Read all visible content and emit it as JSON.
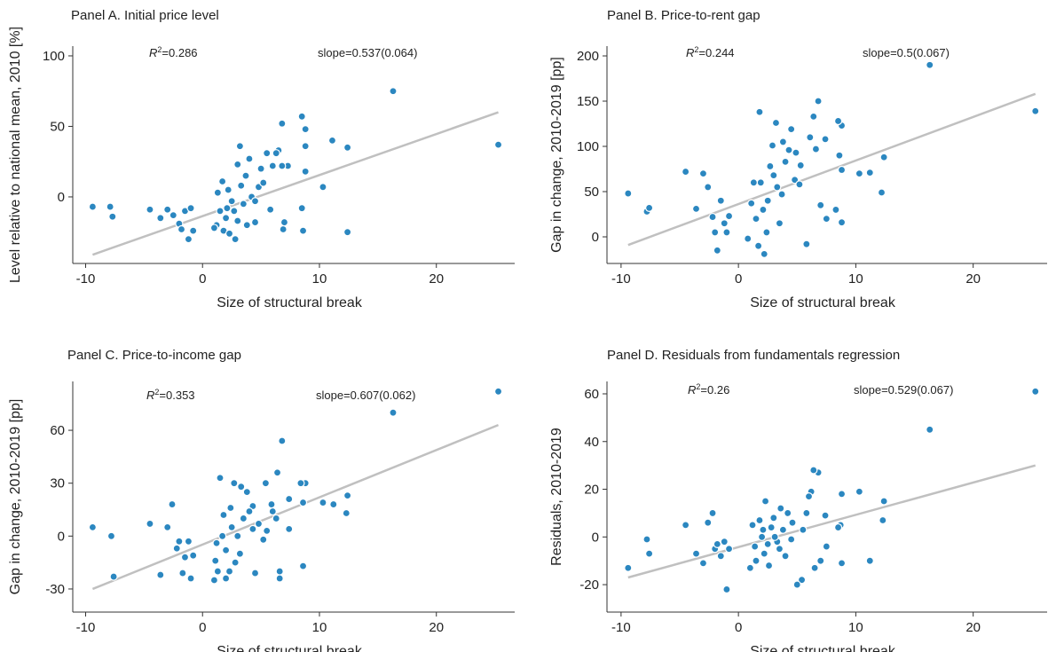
{
  "chart_data": [
    {
      "type": "scatter",
      "title": "Panel A. Initial price level",
      "xlabel": "Size of structural break",
      "ylabel": "Level relative to national mean, 2010 [%]",
      "xlim": [
        -11.1,
        26.7
      ],
      "ylim": [
        -47.2,
        106.9
      ],
      "xticks": [
        -10,
        0,
        10,
        20
      ],
      "yticks": [
        0,
        50,
        100
      ],
      "color": "#2b87c0",
      "fit_color": "#c0c0c0",
      "r2_prefix": "R",
      "r2_sup": "2",
      "r2_text": "=0.286",
      "slope_text": "slope=0.537(0.064)",
      "fit": {
        "x": [
          -9.4,
          25.3
        ],
        "y": [
          -41,
          60
        ]
      },
      "x": [
        -9.4,
        -7.9,
        -7.7,
        -4.5,
        -3.6,
        -3,
        -2.5,
        -2,
        -1.8,
        -1.5,
        -1.2,
        -1,
        -0.8,
        16.3,
        25.3,
        12.4,
        12.4,
        11.1,
        10.3,
        8.8,
        8.5,
        8.8,
        8.8,
        8.6,
        8.5,
        7.3,
        6.8,
        6.5,
        6.3,
        6.9,
        7,
        6,
        5.5,
        5,
        4.8,
        4.5,
        4,
        3.7,
        3.3,
        3.2,
        3,
        2.8,
        2.5,
        2.2,
        2,
        1.8,
        1.5,
        1.2,
        1,
        1.3,
        2.7,
        3.5,
        4.2,
        5.2,
        6.8,
        5.8,
        3.8,
        2.3,
        1.7,
        4.5,
        3,
        2.1
      ],
      "y": [
        -7,
        -7,
        -14,
        -9,
        -15,
        -9,
        -13,
        -19,
        -23,
        -10,
        -30,
        -8,
        -24,
        75,
        37,
        35,
        -25,
        40,
        7,
        48,
        57,
        36,
        18,
        -24,
        -8,
        22,
        52,
        33,
        31,
        -23,
        -18,
        22,
        31,
        20,
        7,
        -18,
        27,
        15,
        8,
        36,
        23,
        -30,
        -3,
        5,
        -15,
        -24,
        -10,
        -20,
        -22,
        3,
        -10,
        -5,
        0,
        10,
        22,
        -9,
        -20,
        -26,
        11,
        -3,
        -17,
        -8
      ]
    },
    {
      "type": "scatter",
      "title": "Panel B. Price-to-rent gap",
      "xlabel": "Size of structural break",
      "ylabel": "Gap in change, 2010-2019  [pp]",
      "xlim": [
        -11.2,
        26.3
      ],
      "ylim": [
        -29.4,
        210.8
      ],
      "xticks": [
        -10,
        0,
        10,
        20
      ],
      "yticks": [
        0,
        50,
        100,
        150,
        200
      ],
      "color": "#2b87c0",
      "fit_color": "#c0c0c0",
      "r2_prefix": "R",
      "r2_sup": "2",
      "r2_text": "=0.244",
      "slope_text": "slope=0.5(0.067)",
      "fit": {
        "x": [
          -9.4,
          25.3
        ],
        "y": [
          -9,
          158
        ]
      },
      "x": [
        -9.4,
        -7.8,
        -7.6,
        -4.5,
        -3.6,
        -3,
        -2.6,
        -2.2,
        -2,
        -1.8,
        -1.5,
        -1.2,
        -1,
        -0.8,
        16.3,
        25.3,
        12.4,
        12.2,
        11.2,
        10.3,
        8.8,
        8.5,
        8.6,
        8.8,
        8.8,
        8.3,
        7.4,
        6.8,
        6.4,
        6.6,
        5.8,
        5.3,
        4.9,
        4.5,
        4.8,
        4.3,
        3.8,
        3.2,
        2.9,
        2.7,
        1.8,
        1.9,
        2.2,
        1.7,
        1.5,
        1.1,
        0.8,
        2.5,
        3.3,
        3.5,
        4,
        2.4,
        3,
        5.2,
        6.1,
        7,
        7.5,
        1.3,
        2.1,
        3.7
      ],
      "y": [
        48,
        28,
        32,
        72,
        31,
        70,
        55,
        22,
        5,
        -15,
        40,
        15,
        5,
        23,
        190,
        139,
        88,
        49,
        71,
        70,
        123,
        128,
        90,
        74,
        16,
        30,
        108,
        150,
        133,
        97,
        -8,
        79,
        93,
        119,
        63,
        96,
        105,
        126,
        101,
        78,
        138,
        60,
        -19,
        -10,
        20,
        37,
        -2,
        40,
        55,
        15,
        83,
        5,
        68,
        58,
        110,
        35,
        20,
        60,
        30,
        47
      ]
    },
    {
      "type": "scatter",
      "title": "Panel C. Price-to-income gap",
      "xlabel": "Size of structural break",
      "ylabel": "Gap in change, 2010-2019 [pp]",
      "xlim": [
        -11.1,
        26.7
      ],
      "ylim": [
        -43.1,
        87.7
      ],
      "xticks": [
        -10,
        0,
        10,
        20
      ],
      "yticks": [
        -30,
        0,
        30,
        60
      ],
      "color": "#2b87c0",
      "fit_color": "#c0c0c0",
      "r2_prefix": "R",
      "r2_sup": "2",
      "r2_text": "=0.353",
      "slope_text": "slope=0.607(0.062)",
      "fit": {
        "x": [
          -9.4,
          25.3
        ],
        "y": [
          -30,
          63
        ]
      },
      "x": [
        -9.4,
        -7.8,
        -7.6,
        -4.5,
        -3.6,
        -3,
        -2.6,
        -2.2,
        -2,
        -1.7,
        -1.5,
        -1.2,
        -1,
        -0.8,
        16.3,
        25.3,
        12.4,
        12.3,
        11.2,
        10.3,
        8.8,
        8.4,
        8.6,
        8.6,
        7.4,
        6.8,
        6.4,
        6.6,
        6.6,
        6.3,
        5.9,
        5.4,
        5.2,
        4.5,
        4.3,
        3.8,
        3.3,
        2.7,
        2,
        1.8,
        1.5,
        1.2,
        1,
        1.3,
        2.3,
        2.5,
        3,
        3.5,
        4,
        2,
        2.8,
        4.8,
        5.5,
        6,
        7.4,
        1.7,
        3.2,
        2.4,
        4.3,
        1.1
      ],
      "y": [
        5,
        0,
        -23,
        7,
        -22,
        5,
        18,
        -7,
        -3,
        -21,
        -12,
        -3,
        -24,
        -11,
        70,
        82,
        23,
        13,
        18,
        19,
        30,
        30,
        19,
        -17,
        21,
        54,
        36,
        -20,
        -24,
        10,
        18,
        30,
        -2,
        -21,
        17,
        25,
        28,
        30,
        -24,
        12,
        33,
        -4,
        -25,
        -20,
        -20,
        5,
        0,
        10,
        14,
        -8,
        -15,
        7,
        3,
        14,
        4,
        0,
        -10,
        16,
        4,
        -14
      ]
    },
    {
      "type": "scatter",
      "title": "Panel D. Residuals from fundamentals regression",
      "xlabel": "Size of structural break",
      "ylabel": "Residuals, 2010-2019",
      "xlim": [
        -11.2,
        26.3
      ],
      "ylim": [
        -31.5,
        65.2
      ],
      "xticks": [
        -10,
        0,
        10,
        20
      ],
      "yticks": [
        -20,
        0,
        20,
        40,
        60
      ],
      "color": "#2b87c0",
      "fit_color": "#c0c0c0",
      "r2_prefix": "R",
      "r2_sup": "2",
      "r2_text": "=0.26",
      "slope_text": "slope=0.529(0.067)",
      "fit": {
        "x": [
          -9.4,
          25.3
        ],
        "y": [
          -17,
          30
        ]
      },
      "x": [
        -9.4,
        -7.8,
        -7.6,
        -4.5,
        -3.6,
        -3,
        -2.6,
        -2.2,
        -2,
        -1.8,
        -1.5,
        -1.2,
        -1,
        -0.8,
        16.3,
        25.3,
        12.4,
        12.3,
        11.2,
        10.3,
        8.8,
        8.7,
        8.5,
        8.8,
        7.4,
        6.8,
        6.4,
        6.2,
        5.8,
        5.4,
        5,
        4.5,
        4.2,
        3.8,
        3.5,
        3,
        2.6,
        2.3,
        2,
        1.5,
        1.2,
        1,
        2.2,
        2.8,
        3.3,
        4,
        5.5,
        6.5,
        7,
        7.5,
        6,
        3.1,
        1.8,
        2.5,
        4.6,
        3.6,
        2.1,
        1.4
      ],
      "y": [
        -13,
        -1,
        -7,
        5,
        -7,
        -11,
        6,
        10,
        -5,
        -3,
        -8,
        -2,
        -22,
        -5,
        45,
        61,
        15,
        7,
        -10,
        19,
        18,
        5,
        4,
        -11,
        9,
        27,
        28,
        19,
        10,
        -18,
        -20,
        -1,
        10,
        3,
        -5,
        8,
        -12,
        15,
        0,
        -10,
        5,
        -13,
        -7,
        4,
        -2,
        -8,
        3,
        -13,
        -10,
        -4,
        17,
        0,
        7,
        -3,
        6,
        12,
        3,
        -4
      ]
    }
  ]
}
